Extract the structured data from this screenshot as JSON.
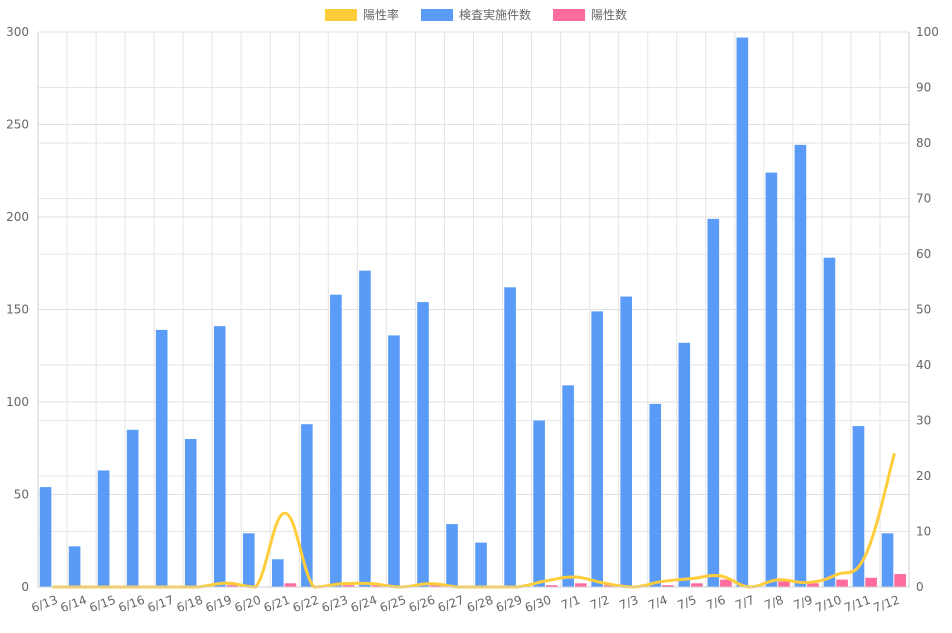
{
  "chart_data": {
    "type": "bar",
    "categories": [
      "6/13",
      "6/14",
      "6/15",
      "6/16",
      "6/17",
      "6/18",
      "6/19",
      "6/20",
      "6/21",
      "6/22",
      "6/23",
      "6/24",
      "6/25",
      "6/26",
      "6/27",
      "6/28",
      "6/29",
      "6/30",
      "7/1",
      "7/2",
      "7/3",
      "7/4",
      "7/5",
      "7/6",
      "7/7",
      "7/8",
      "7/9",
      "7/10",
      "7/11",
      "7/12"
    ],
    "legend": {
      "position": "top",
      "items": [
        {
          "key": "rate",
          "label": "陽性率",
          "color": "#ffcd3c"
        },
        {
          "key": "tests",
          "label": "検査実施件数",
          "color": "#5b9bf8"
        },
        {
          "key": "positives",
          "label": "陽性数",
          "color": "#ff6b9f"
        }
      ]
    },
    "series": [
      {
        "name": "検査実施件数",
        "key": "tests",
        "type": "bar",
        "axis": "left",
        "color": "#5b9bf8",
        "values": [
          54,
          22,
          63,
          85,
          139,
          80,
          141,
          29,
          15,
          88,
          158,
          171,
          136,
          154,
          34,
          24,
          162,
          90,
          109,
          149,
          157,
          99,
          132,
          199,
          297,
          224,
          239,
          178,
          87,
          29
        ]
      },
      {
        "name": "陽性数",
        "key": "positives",
        "type": "bar",
        "axis": "left",
        "color": "#ff6b9f",
        "values": [
          0,
          0,
          0,
          0,
          0,
          0,
          1,
          0,
          2,
          0,
          1,
          1,
          0,
          1,
          0,
          0,
          0,
          1,
          2,
          1,
          0,
          1,
          2,
          4,
          0,
          3,
          2,
          4,
          5,
          7
        ]
      },
      {
        "name": "陽性率",
        "key": "rate",
        "type": "line",
        "axis": "right",
        "color": "#ffcd3c",
        "values": [
          0,
          0,
          0,
          0,
          0,
          0,
          0.7,
          0,
          13.3,
          0,
          0.6,
          0.6,
          0,
          0.6,
          0,
          0,
          0,
          1.1,
          1.8,
          0.7,
          0,
          1.0,
          1.5,
          2.0,
          0,
          1.3,
          0.8,
          2.2,
          5.7,
          24.1
        ]
      }
    ],
    "y_left": {
      "min": 0,
      "max": 300,
      "step": 50,
      "ticks": [
        "0",
        "50",
        "100",
        "150",
        "200",
        "250",
        "300"
      ]
    },
    "y_right": {
      "min": 0,
      "max": 100,
      "step": 10,
      "ticks": [
        "0",
        "10",
        "20",
        "30",
        "40",
        "50",
        "60",
        "70",
        "80",
        "90",
        "100"
      ]
    },
    "grid": true,
    "title": "",
    "xlabel": "",
    "ylabel": ""
  }
}
